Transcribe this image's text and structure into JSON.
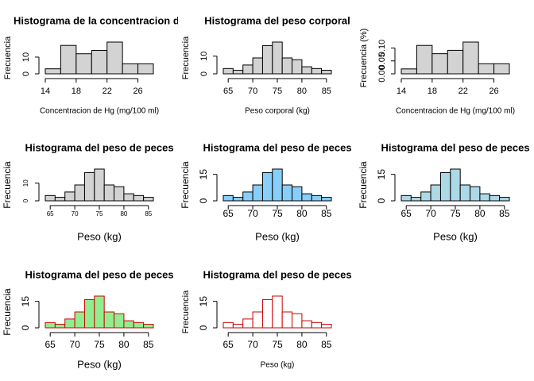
{
  "chart_data": [
    {
      "type": "histogram",
      "title": "Histograma de la concentracion de",
      "xlabel": "Concentracion de Hg (mg/100 ml)",
      "ylabel": "Frecuencia",
      "bins": [
        14,
        16,
        18,
        20,
        22,
        24,
        26,
        28
      ],
      "values": [
        3,
        17,
        12,
        14,
        19,
        6,
        6
      ],
      "color": "#d3d3d3",
      "edge_color": "#000000",
      "xlim": [
        14,
        28
      ],
      "xticks": [
        14,
        18,
        22,
        26
      ],
      "ylim": [
        0,
        19
      ],
      "yticks": [
        0,
        10
      ]
    },
    {
      "type": "histogram",
      "title": "Histograma del peso corporal",
      "xlabel": "Peso corporal (kg)",
      "ylabel": "Frecuencia",
      "bins": [
        64,
        66,
        68,
        70,
        72,
        74,
        76,
        78,
        80,
        82,
        84,
        86
      ],
      "values": [
        3,
        2,
        5,
        9,
        16,
        18,
        9,
        8,
        4,
        3,
        2
      ],
      "color": "#d3d3d3",
      "edge_color": "#000000",
      "xlim": [
        64,
        86
      ],
      "xticks": [
        65,
        70,
        75,
        80,
        85
      ],
      "ylim": [
        0,
        18
      ],
      "yticks": [
        0,
        10
      ]
    },
    {
      "type": "histogram",
      "xlabel": "Concentracion de Hg (mg/100 ml)",
      "ylabel": "Frecuencia (%)",
      "bins": [
        14,
        16,
        18,
        20,
        22,
        24,
        26,
        28
      ],
      "values": [
        0.019,
        0.11,
        0.078,
        0.091,
        0.123,
        0.039,
        0.039
      ],
      "color": "#d3d3d3",
      "edge_color": "#000000",
      "xlim": [
        14,
        28
      ],
      "xticks": [
        14,
        18,
        22,
        26
      ],
      "ylim": [
        0,
        0.123
      ],
      "yticks": [
        {
          "value": 0,
          "label": "0.00"
        },
        {
          "value": 0.05,
          "label": "0.05"
        },
        {
          "value": 0.1,
          "label": "0.10"
        }
      ]
    },
    {
      "type": "histogram",
      "title": "Histograma del peso de peces",
      "xlabel": "Peso (kg)",
      "ylabel": "Frecuencia",
      "bins": [
        64,
        66,
        68,
        70,
        72,
        74,
        76,
        78,
        80,
        82,
        84,
        86
      ],
      "values": [
        3,
        2,
        5,
        9,
        16,
        18,
        9,
        8,
        4,
        3,
        2
      ],
      "color": "#d3d3d3",
      "edge_color": "#000000",
      "xlim": [
        64,
        86
      ],
      "xticks": [
        65,
        70,
        75,
        80,
        85
      ],
      "ylim": [
        0,
        18
      ],
      "yticks": [
        0,
        10
      ]
    },
    {
      "type": "histogram",
      "title": "Histograma del peso de peces",
      "xlabel": "Peso (kg)",
      "ylabel": "Frecuencia",
      "bins": [
        64,
        66,
        68,
        70,
        72,
        74,
        76,
        78,
        80,
        82,
        84,
        86
      ],
      "values": [
        3,
        2,
        5,
        9,
        16,
        18,
        9,
        8,
        4,
        3,
        2
      ],
      "color": "#87cefa",
      "edge_color": "#000000",
      "xlim": [
        64,
        86
      ],
      "xticks": [
        65,
        70,
        75,
        80,
        85
      ],
      "ylim": [
        0,
        18
      ],
      "yticks": [
        0,
        15
      ]
    },
    {
      "type": "histogram",
      "title": "Histograma del peso de peces",
      "xlabel": "Peso (kg)",
      "ylabel": "Frecuencia",
      "bins": [
        64,
        66,
        68,
        70,
        72,
        74,
        76,
        78,
        80,
        82,
        84,
        86
      ],
      "values": [
        3,
        2,
        5,
        9,
        16,
        18,
        9,
        8,
        4,
        3,
        2
      ],
      "color": "#add8e6",
      "edge_color": "#000000",
      "xlim": [
        64,
        86
      ],
      "xticks": [
        65,
        70,
        75,
        80,
        85
      ],
      "ylim": [
        0,
        18
      ],
      "yticks": [
        0,
        15
      ]
    },
    {
      "type": "histogram",
      "title": "Histograma del peso de peces",
      "xlabel": "Peso (kg)",
      "ylabel": "Frecuencia",
      "bins": [
        64,
        66,
        68,
        70,
        72,
        74,
        76,
        78,
        80,
        82,
        84,
        86
      ],
      "values": [
        3,
        2,
        5,
        9,
        16,
        18,
        9,
        8,
        4,
        3,
        2
      ],
      "color": "#90ee90",
      "edge_color": "#cc0000",
      "xlim": [
        64,
        86
      ],
      "xticks": [
        65,
        70,
        75,
        80,
        85
      ],
      "ylim": [
        0,
        18
      ],
      "yticks": [
        0,
        15
      ]
    },
    {
      "type": "histogram",
      "title": "Histograma del peso de peces",
      "xlabel": "Peso (kg)",
      "ylabel": "Frecuencia",
      "bins": [
        64,
        66,
        68,
        70,
        72,
        74,
        76,
        78,
        80,
        82,
        84,
        86
      ],
      "values": [
        3,
        2,
        5,
        9,
        16,
        18,
        9,
        8,
        4,
        3,
        2
      ],
      "color": "#ffffff",
      "edge_color": "#cc0000",
      "xlim": [
        64,
        86
      ],
      "xticks": [
        65,
        70,
        75,
        80,
        85
      ],
      "ylim": [
        0,
        18
      ],
      "yticks": [
        0,
        15
      ]
    }
  ]
}
